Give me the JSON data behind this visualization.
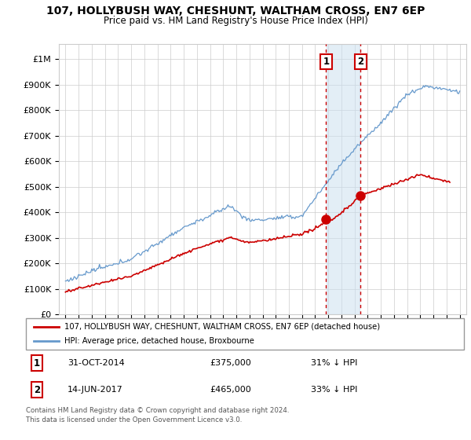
{
  "title": "107, HOLLYBUSH WAY, CHESHUNT, WALTHAM CROSS, EN7 6EP",
  "subtitle": "Price paid vs. HM Land Registry's House Price Index (HPI)",
  "ylabel_ticks": [
    "£0",
    "£100K",
    "£200K",
    "£300K",
    "£400K",
    "£500K",
    "£600K",
    "£700K",
    "£800K",
    "£900K",
    "£1M"
  ],
  "ytick_values": [
    0,
    100000,
    200000,
    300000,
    400000,
    500000,
    600000,
    700000,
    800000,
    900000,
    1000000
  ],
  "ylim": [
    0,
    1060000
  ],
  "xlim_start": 1994.5,
  "xlim_end": 2025.5,
  "legend_line1": "107, HOLLYBUSH WAY, CHESHUNT, WALTHAM CROSS, EN7 6EP (detached house)",
  "legend_line2": "HPI: Average price, detached house, Broxbourne",
  "transaction1_date": 2014.83,
  "transaction1_price": 375000,
  "transaction2_date": 2017.45,
  "transaction2_price": 465000,
  "table_row1": [
    "1",
    "31-OCT-2014",
    "£375,000",
    "31% ↓ HPI"
  ],
  "table_row2": [
    "2",
    "14-JUN-2017",
    "£465,000",
    "33% ↓ HPI"
  ],
  "footer": "Contains HM Land Registry data © Crown copyright and database right 2024.\nThis data is licensed under the Open Government Licence v3.0.",
  "hpi_color": "#6699cc",
  "price_color": "#cc0000",
  "shade_color": "#cce0f0",
  "vline_color": "#cc0000",
  "background_color": "#ffffff"
}
